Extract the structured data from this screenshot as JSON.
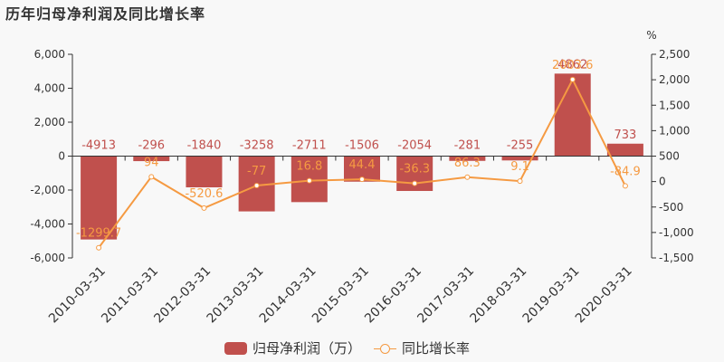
{
  "title": "历年归母净利润及同比增长率",
  "colors": {
    "bar": "#c0504d",
    "line": "#f59a42",
    "axis": "#333333",
    "background": "#f8f8f8"
  },
  "legend": {
    "bar_label": "归母净利润（万）",
    "line_label": "同比增长率"
  },
  "right_axis_unit": "%",
  "chart_data": {
    "type": "bar",
    "title": "历年归母净利润及同比增长率",
    "categories": [
      "2010-03-31",
      "2011-03-31",
      "2012-03-31",
      "2013-03-31",
      "2014-03-31",
      "2015-03-31",
      "2016-03-31",
      "2017-03-31",
      "2018-03-31",
      "2019-03-31",
      "2020-03-31"
    ],
    "series": [
      {
        "name": "归母净利润（万）",
        "type": "bar",
        "axis": "left",
        "values": [
          -4913,
          -296,
          -1840,
          -3258,
          -2711,
          -1506,
          -2054,
          -281,
          -255,
          4862,
          733
        ]
      },
      {
        "name": "同比增长率",
        "type": "line",
        "axis": "right",
        "values": [
          -1299.7,
          94,
          -520.6,
          -77,
          16.8,
          44.4,
          -36.3,
          86.3,
          9.1,
          2003.6,
          -84.9
        ]
      }
    ],
    "left_axis": {
      "ylim": [
        -6000,
        6000
      ],
      "ticks": [
        "6,000",
        "4,000",
        "2,000",
        "0",
        "-2,000",
        "-4,000",
        "-6,000"
      ]
    },
    "right_axis": {
      "unit": "%",
      "ylim": [
        -1500,
        2500
      ],
      "ticks": [
        "2,500",
        "2,000",
        "1,500",
        "1,000",
        "500",
        "0",
        "-500",
        "-1,000",
        "-1,500"
      ]
    },
    "grid": false,
    "legend_position": "bottom"
  }
}
